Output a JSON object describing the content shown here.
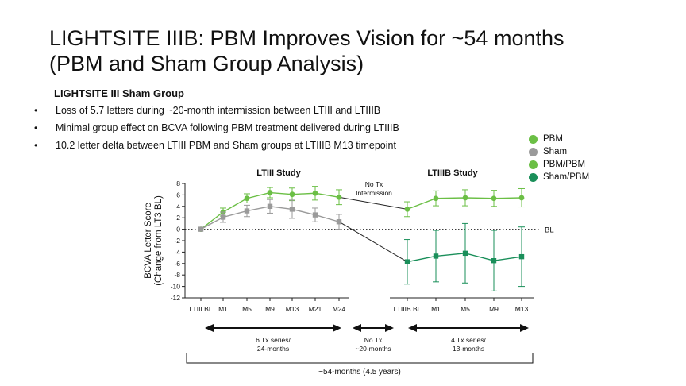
{
  "slide": {
    "title_line1": "LIGHTSITE IIIB: PBM Improves Vision for ~54 months",
    "title_line2": "(PBM and Sham Group Analysis)",
    "subheading": "LIGHTSITE III Sham Group",
    "bullets": [
      "Loss of 5.7 letters during ~20-month intermission between LTIII and LTIIIB",
      "Minimal group effect on BCVA following PBM treatment delivered during LTIIIB",
      "10.2 letter delta between LTIII PBM and Sham groups at LTIIIB M13 timepoint"
    ]
  },
  "legend": [
    {
      "label": "PBM",
      "color": "#6bbf45"
    },
    {
      "label": "Sham",
      "color": "#9a9a9a"
    },
    {
      "label": "PBM/PBM",
      "color": "#6bbf45"
    },
    {
      "label": "Sham/PBM",
      "color": "#1a8f5a"
    }
  ],
  "chart_data": {
    "type": "line",
    "ylabel_line1": "BCVA Letter Score",
    "ylabel_line2": "(Change from LT3 BL)",
    "ylim": [
      -12,
      8
    ],
    "yticks": [
      8,
      6,
      4,
      2,
      0,
      -2,
      -4,
      -6,
      -8,
      -10,
      -12
    ],
    "baseline_label": "BL",
    "panels": [
      {
        "title": "LTIII Study",
        "categories": [
          "LTIII BL",
          "M1",
          "M5",
          "M9",
          "M13",
          "M21",
          "M24"
        ],
        "series": [
          {
            "name": "PBM",
            "color": "#6bbf45",
            "values": [
              0,
              3.0,
              5.4,
              6.4,
              6.1,
              6.3,
              5.6
            ],
            "errors": [
              0,
              0.7,
              0.8,
              0.9,
              1.1,
              1.2,
              1.3
            ]
          },
          {
            "name": "Sham",
            "color": "#9a9a9a",
            "values": [
              0,
              2.1,
              3.2,
              4.0,
              3.5,
              2.5,
              1.3
            ],
            "errors": [
              0,
              0.9,
              1.0,
              1.2,
              1.6,
              1.2,
              1.3
            ]
          }
        ]
      },
      {
        "title": "LTIIIB Study",
        "categories": [
          "LTIIIB BL",
          "M1",
          "M5",
          "M9",
          "M13"
        ],
        "series": [
          {
            "name": "PBM/PBM",
            "color": "#6bbf45",
            "values": [
              3.5,
              5.4,
              5.5,
              5.4,
              5.5
            ],
            "errors": [
              1.3,
              1.3,
              1.4,
              1.4,
              1.6
            ]
          },
          {
            "name": "Sham/PBM",
            "color": "#1a8f5a",
            "values": [
              -5.7,
              -4.7,
              -4.2,
              -5.5,
              -4.8
            ],
            "errors": [
              3.9,
              4.5,
              5.2,
              5.3,
              5.2
            ]
          }
        ]
      }
    ],
    "intermission_label_line1": "No Tx",
    "intermission_label_line2": "Intermission",
    "periods": [
      {
        "line1": "6 Tx series/",
        "line2": "24-months"
      },
      {
        "line1": "No Tx",
        "line2": "~20-months"
      },
      {
        "line1": "4 Tx series/",
        "line2": "13-months"
      }
    ],
    "total_span": "~54-months (4.5 years)"
  }
}
